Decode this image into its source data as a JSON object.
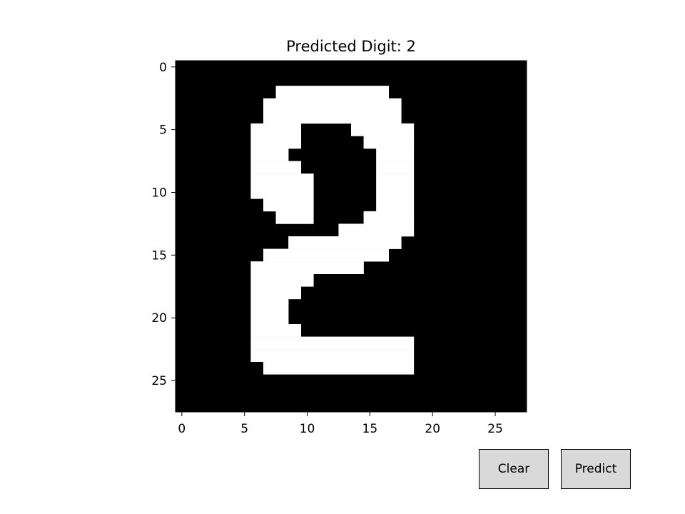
{
  "title_prefix": "Predicted Digit: ",
  "predicted_digit": "2",
  "title": "Predicted Digit: 2",
  "buttons": {
    "clear_label": "Clear",
    "predict_label": "Predict"
  },
  "colors": {
    "background": "#000000",
    "foreground": "#ffffff",
    "button_face": "#d9d9d9"
  },
  "chart_data": {
    "type": "heatmap",
    "title": "Predicted Digit: 2",
    "xlabel": "",
    "ylabel": "",
    "xlim": [
      -0.5,
      27.5
    ],
    "ylim": [
      27.5,
      -0.5
    ],
    "x_ticks": [
      0,
      5,
      10,
      15,
      20,
      25
    ],
    "y_ticks": [
      0,
      5,
      10,
      15,
      20,
      25
    ],
    "grid": false,
    "colormap": "gray",
    "rows": 28,
    "cols": 28,
    "white_runs_by_row": [
      [],
      [],
      [
        [
          8,
          16
        ]
      ],
      [
        [
          7,
          17
        ]
      ],
      [
        [
          7,
          17
        ]
      ],
      [
        [
          6,
          9
        ],
        [
          14,
          18
        ]
      ],
      [
        [
          6,
          9
        ],
        [
          15,
          18
        ]
      ],
      [
        [
          6,
          8
        ],
        [
          16,
          18
        ]
      ],
      [
        [
          6,
          9
        ],
        [
          16,
          18
        ]
      ],
      [
        [
          6,
          10
        ],
        [
          16,
          18
        ]
      ],
      [
        [
          6,
          10
        ],
        [
          16,
          18
        ]
      ],
      [
        [
          7,
          10
        ],
        [
          16,
          18
        ]
      ],
      [
        [
          8,
          10
        ],
        [
          15,
          18
        ]
      ],
      [
        [
          13,
          18
        ]
      ],
      [
        [
          9,
          17
        ]
      ],
      [
        [
          7,
          16
        ]
      ],
      [
        [
          6,
          14
        ]
      ],
      [
        [
          6,
          10
        ]
      ],
      [
        [
          6,
          9
        ]
      ],
      [
        [
          6,
          8
        ]
      ],
      [
        [
          6,
          8
        ]
      ],
      [
        [
          6,
          9
        ]
      ],
      [
        [
          6,
          18
        ]
      ],
      [
        [
          6,
          18
        ]
      ],
      [
        [
          7,
          18
        ]
      ],
      [],
      [],
      []
    ]
  }
}
